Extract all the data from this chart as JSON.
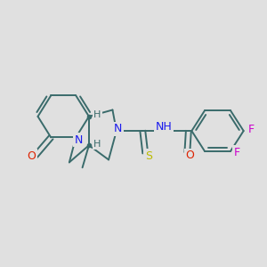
{
  "background_color": "#e0e0e0",
  "bond_color": "#3a6b6b",
  "bond_width": 1.4,
  "atom_colors": {
    "N": "#1a1aee",
    "O": "#dd2200",
    "S": "#bbbb00",
    "F": "#cc00cc",
    "H_label": "#3a6b6b"
  },
  "figsize": [
    3.0,
    3.0
  ],
  "dpi": 100,
  "xlim": [
    0,
    10
  ],
  "ylim": [
    0,
    10
  ]
}
